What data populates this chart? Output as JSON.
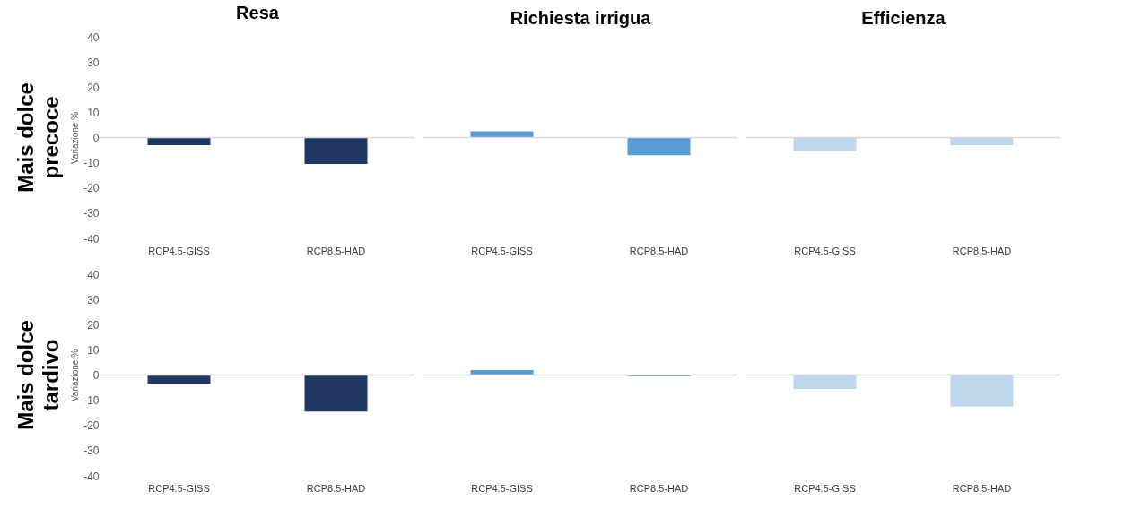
{
  "chart_data": [
    {
      "type": "bar",
      "title": "Resa",
      "ylabel": "Variazione %",
      "annotations": [
        "Mais dolce\nprecoce"
      ],
      "categories": [
        "RCP4.5-GISS",
        "RCP8.5-HAD"
      ],
      "values": [
        -3,
        -10.5
      ],
      "color": "#203864",
      "ylim": [
        -40,
        40
      ],
      "yticks": [
        -40,
        -30,
        -20,
        -10,
        0,
        10,
        20,
        30,
        40
      ],
      "ref_lines": [
        {
          "axis": "y",
          "value": 0,
          "color": "#d9d9d9"
        }
      ]
    },
    {
      "type": "bar",
      "title": "Richiesta irrigua",
      "categories": [
        "RCP4.5-GISS",
        "RCP8.5-HAD"
      ],
      "values": [
        2.5,
        -7
      ],
      "color": "#5b9bd5",
      "ylim": [
        -40,
        40
      ],
      "tick_labels": "x",
      "ref_lines": [
        {
          "axis": "y",
          "value": 0,
          "color": "#d9d9d9"
        }
      ]
    },
    {
      "type": "bar",
      "title": "Efficienza",
      "categories": [
        "RCP4.5-GISS",
        "RCP8.5-HAD"
      ],
      "values": [
        -5.5,
        -3
      ],
      "color": "#bdd7ee",
      "ylim": [
        -40,
        40
      ],
      "tick_labels": "x",
      "ref_lines": [
        {
          "axis": "y",
          "value": 0,
          "color": "#d9d9d9"
        }
      ]
    },
    {
      "type": "bar",
      "ylabel": "Variazione %",
      "annotations": [
        "Mais dolce\ntardivo"
      ],
      "categories": [
        "RCP4.5-GISS",
        "RCP8.5-HAD"
      ],
      "values": [
        -3.5,
        -14.5
      ],
      "color": "#203864",
      "ylim": [
        -40,
        40
      ],
      "yticks": [
        -40,
        -30,
        -20,
        -10,
        0,
        10,
        20,
        30,
        40
      ],
      "ref_lines": [
        {
          "axis": "y",
          "value": 0,
          "color": "#d9d9d9"
        }
      ]
    },
    {
      "type": "bar",
      "categories": [
        "RCP4.5-GISS",
        "RCP8.5-HAD"
      ],
      "values": [
        2,
        -0.5
      ],
      "color": "#5b9bd5",
      "ylim": [
        -40,
        40
      ],
      "tick_labels": "x",
      "ref_lines": [
        {
          "axis": "y",
          "value": 0,
          "color": "#d9d9d9"
        }
      ]
    },
    {
      "type": "bar",
      "categories": [
        "RCP4.5-GISS",
        "RCP8.5-HAD"
      ],
      "values": [
        -5.5,
        -12.5
      ],
      "color": "#bdd7ee",
      "ylim": [
        -40,
        40
      ],
      "tick_labels": "x",
      "ref_lines": [
        {
          "axis": "y",
          "value": 0,
          "color": "#d9d9d9"
        }
      ]
    }
  ]
}
